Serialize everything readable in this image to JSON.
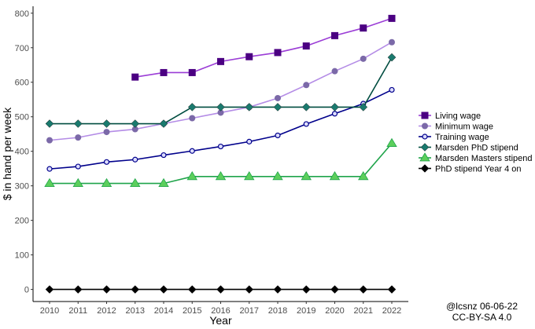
{
  "chart_data": {
    "type": "line",
    "xlabel": "Year",
    "ylabel": "$ in hand per week",
    "ylim": [
      0,
      800
    ],
    "yticks": [
      0,
      100,
      200,
      300,
      400,
      500,
      600,
      700,
      800
    ],
    "xticks": [
      2010,
      2011,
      2012,
      2013,
      2014,
      2015,
      2016,
      2017,
      2018,
      2019,
      2020,
      2021,
      2022
    ],
    "grid": false,
    "legend_position": "right",
    "series": [
      {
        "name": "Living wage",
        "color": "#4b0082",
        "line_color": "#9b3dd6",
        "marker": "square",
        "x": [
          2013,
          2014,
          2015,
          2016,
          2017,
          2018,
          2019,
          2020,
          2021,
          2022
        ],
        "values": [
          615,
          628,
          628,
          660,
          674,
          686,
          705,
          735,
          757,
          785
        ]
      },
      {
        "name": "Minimum wage",
        "color": "#7b69a8",
        "line_color": "#b48ce6",
        "marker": "circle",
        "x": [
          2010,
          2011,
          2012,
          2013,
          2014,
          2015,
          2016,
          2017,
          2018,
          2019,
          2020,
          2021,
          2022
        ],
        "values": [
          432,
          440,
          456,
          464,
          480,
          496,
          512,
          528,
          554,
          592,
          632,
          668,
          716
        ]
      },
      {
        "name": "Training wage",
        "color": "#00008b",
        "line_color": "#00008b",
        "marker": "open-circle",
        "x": [
          2010,
          2011,
          2012,
          2013,
          2014,
          2015,
          2016,
          2017,
          2018,
          2019,
          2020,
          2021,
          2022
        ],
        "values": [
          349,
          356,
          369,
          376,
          389,
          401,
          414,
          428,
          446,
          479,
          509,
          538,
          578
        ]
      },
      {
        "name": "Marsden PhD stipend",
        "color": "#1a7a6e",
        "line_color": "#004d40",
        "marker": "diamond",
        "x": [
          2010,
          2011,
          2012,
          2013,
          2014,
          2015,
          2016,
          2017,
          2018,
          2019,
          2020,
          2021,
          2022
        ],
        "values": [
          480,
          480,
          480,
          480,
          480,
          528,
          528,
          528,
          528,
          528,
          528,
          528,
          672
        ]
      },
      {
        "name": "Marsden Masters stipend",
        "color": "#5ccf5c",
        "line_color": "#1fa44a",
        "marker": "triangle",
        "x": [
          2010,
          2011,
          2012,
          2013,
          2014,
          2015,
          2016,
          2017,
          2018,
          2019,
          2020,
          2021,
          2022
        ],
        "values": [
          307,
          307,
          307,
          307,
          307,
          327,
          327,
          327,
          327,
          327,
          327,
          327,
          423
        ]
      },
      {
        "name": "PhD stipend Year 4 on",
        "color": "#000000",
        "line_color": "#000000",
        "marker": "diamond",
        "x": [
          2010,
          2011,
          2012,
          2013,
          2014,
          2015,
          2016,
          2017,
          2018,
          2019,
          2020,
          2021,
          2022
        ],
        "values": [
          0,
          0,
          0,
          0,
          0,
          0,
          0,
          0,
          0,
          0,
          0,
          0,
          0
        ]
      }
    ]
  },
  "credit": {
    "line1": "@lcsnz 06-06-22",
    "line2": "CC-BY-SA 4.0"
  }
}
